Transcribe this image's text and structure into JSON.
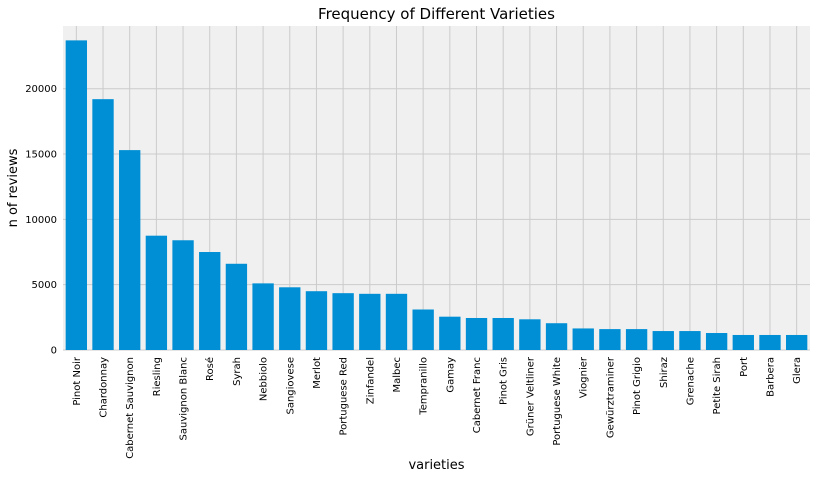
{
  "chart_data": {
    "type": "bar",
    "title": "Frequency of Different Varieties",
    "xlabel": "varieties",
    "ylabel": "n of reviews",
    "categories": [
      "Pinot Noir",
      "Chardonnay",
      "Cabernet Sauvignon",
      "Riesling",
      "Sauvignon Blanc",
      "Rosé",
      "Syrah",
      "Nebbiolo",
      "Sangiovese",
      "Merlot",
      "Portuguese Red",
      "Zinfandel",
      "Malbec",
      "Tempranillo",
      "Gamay",
      "Cabernet Franc",
      "Pinot Gris",
      "Grüner Veltliner",
      "Portuguese White",
      "Viognier",
      "Gewürztraminer",
      "Pinot Grigio",
      "Shiraz",
      "Grenache",
      "Petite Sirah",
      "Port",
      "Barbera",
      "Glera"
    ],
    "values": [
      23700,
      19200,
      15300,
      8750,
      8400,
      7500,
      6600,
      5100,
      4800,
      4500,
      4350,
      4300,
      4300,
      3100,
      2550,
      2450,
      2450,
      2350,
      2050,
      1650,
      1600,
      1600,
      1450,
      1450,
      1300,
      1150,
      1150,
      1150
    ],
    "ylim": [
      0,
      24800
    ],
    "yticks": [
      0,
      5000,
      10000,
      15000,
      20000
    ],
    "grid": true,
    "colors": {
      "bar": "#008fd5",
      "plot_background": "#f0f0f0",
      "grid": "#cbcbcb"
    }
  }
}
